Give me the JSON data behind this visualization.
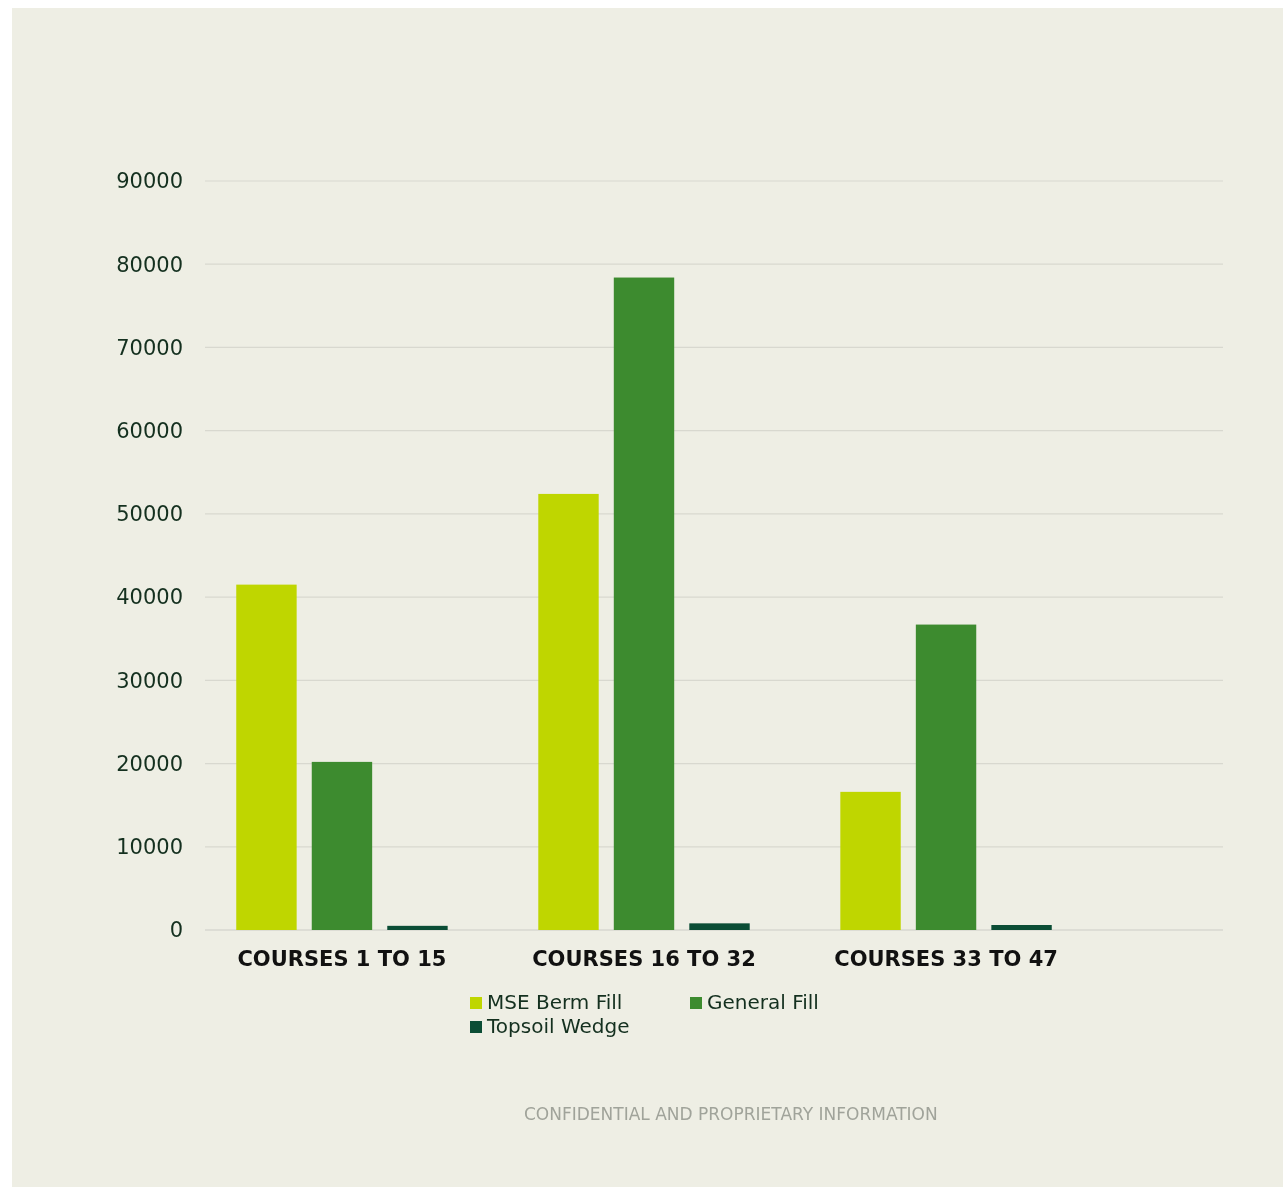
{
  "chart_data": {
    "type": "bar",
    "categories": [
      "COURSES 1 TO 15",
      "COURSES 16 TO 32",
      "COURSES 33 TO 47"
    ],
    "series": [
      {
        "name": "MSE Berm Fill",
        "color": "#bfd600",
        "values": [
          41500,
          52400,
          16600
        ]
      },
      {
        "name": "General Fill",
        "color": "#3d8b2f",
        "values": [
          20200,
          78400,
          36700
        ]
      },
      {
        "name": "Topsoil Wedge",
        "color": "#0b4d35",
        "values": [
          500,
          800,
          600
        ]
      }
    ],
    "ylim": [
      0,
      90000
    ],
    "yticks": [
      0,
      10000,
      20000,
      30000,
      40000,
      50000,
      60000,
      70000,
      80000,
      90000
    ],
    "grid": "y",
    "legend": "bottom",
    "annotations": [
      "CONFIDENTIAL AND PROPRIETARY INFORMATION"
    ]
  }
}
